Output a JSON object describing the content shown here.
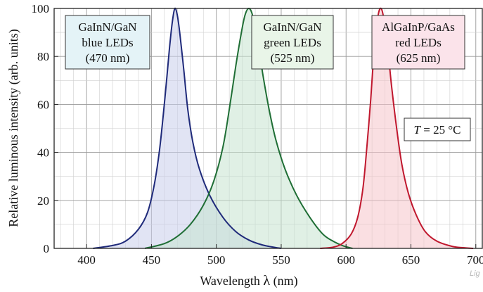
{
  "chart_data": {
    "type": "area",
    "xlabel_main": "Wavelength ",
    "xlabel_symbol": "λ",
    "xlabel_unit": " (nm)",
    "ylabel": "Relative luminous intensity  (arb. units)",
    "xlim": [
      375,
      705
    ],
    "ylim": [
      0,
      100
    ],
    "x_ticks": [
      400,
      450,
      500,
      550,
      600,
      650,
      700
    ],
    "y_ticks": [
      0,
      20,
      40,
      60,
      80,
      100
    ],
    "grid": true,
    "series": [
      {
        "name_lines": [
          "GaInN/GaN",
          "blue LEDs",
          "(470 nm)"
        ],
        "color": "#1f2a7a",
        "fill": "#c9cdeb",
        "points": [
          [
            405,
            0
          ],
          [
            420,
            1.2
          ],
          [
            430,
            3
          ],
          [
            440,
            8
          ],
          [
            447,
            15
          ],
          [
            452,
            26
          ],
          [
            456,
            40
          ],
          [
            459,
            55
          ],
          [
            462,
            72
          ],
          [
            464,
            84
          ],
          [
            466,
            94
          ],
          [
            468,
            100
          ],
          [
            470,
            97
          ],
          [
            472,
            89
          ],
          [
            475,
            74
          ],
          [
            478,
            58
          ],
          [
            482,
            44
          ],
          [
            487,
            33
          ],
          [
            495,
            22
          ],
          [
            505,
            13
          ],
          [
            515,
            7
          ],
          [
            525,
            3.5
          ],
          [
            535,
            1.5
          ],
          [
            545,
            0.4
          ],
          [
            550,
            0
          ]
        ]
      },
      {
        "name_lines": [
          "GaInN/GaN",
          "green LEDs",
          "(525 nm)"
        ],
        "color": "#1f6e35",
        "fill": "#c7e3cf",
        "points": [
          [
            445,
            0
          ],
          [
            460,
            2
          ],
          [
            470,
            5
          ],
          [
            480,
            10
          ],
          [
            490,
            18
          ],
          [
            498,
            28
          ],
          [
            505,
            42
          ],
          [
            510,
            58
          ],
          [
            515,
            76
          ],
          [
            519,
            89
          ],
          [
            522,
            97
          ],
          [
            525,
            100
          ],
          [
            528,
            97
          ],
          [
            532,
            86
          ],
          [
            536,
            72
          ],
          [
            541,
            57
          ],
          [
            546,
            45
          ],
          [
            553,
            33
          ],
          [
            562,
            22
          ],
          [
            572,
            13
          ],
          [
            582,
            6
          ],
          [
            590,
            3
          ],
          [
            598,
            1
          ],
          [
            605,
            0
          ]
        ]
      },
      {
        "name_lines": [
          "AlGaInP/GaAs",
          "red LEDs",
          "(625 nm)"
        ],
        "color": "#c0182e",
        "fill": "#f5c4cb",
        "points": [
          [
            580,
            0
          ],
          [
            590,
            0.5
          ],
          [
            597,
            2
          ],
          [
            604,
            6
          ],
          [
            609,
            13
          ],
          [
            613,
            25
          ],
          [
            616,
            42
          ],
          [
            619,
            62
          ],
          [
            621,
            78
          ],
          [
            623,
            90
          ],
          [
            625,
            98
          ],
          [
            627,
            100
          ],
          [
            629,
            96
          ],
          [
            632,
            84
          ],
          [
            635,
            68
          ],
          [
            639,
            50
          ],
          [
            643,
            35
          ],
          [
            648,
            23
          ],
          [
            654,
            14
          ],
          [
            661,
            7
          ],
          [
            670,
            3
          ],
          [
            682,
            0.8
          ],
          [
            690,
            0.3
          ],
          [
            698,
            0
          ]
        ]
      }
    ],
    "annotation": {
      "temp_symbol": "T",
      "temp_rest": " = 25 °C"
    }
  },
  "watermark": "Lig"
}
